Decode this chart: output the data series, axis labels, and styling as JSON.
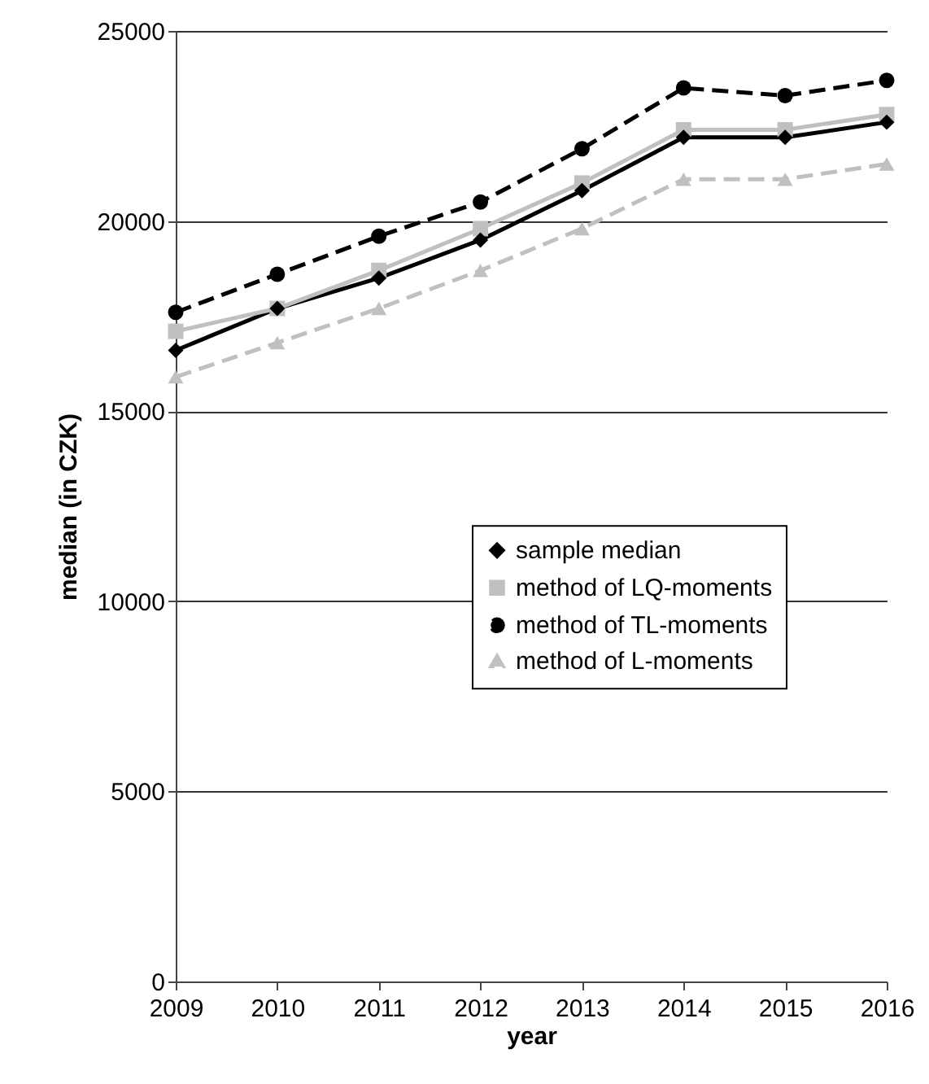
{
  "chart_data": {
    "type": "line",
    "xlabel": "year",
    "ylabel": "median (in CZK)",
    "categories": [
      "2009",
      "2010",
      "2011",
      "2012",
      "2013",
      "2014",
      "2015",
      "2016"
    ],
    "ylim": [
      0,
      25000
    ],
    "yticks": [
      0,
      5000,
      10000,
      15000,
      20000,
      25000
    ],
    "grid": "y",
    "legend": "right",
    "series": [
      {
        "name": "sample median",
        "color": "#000000",
        "marker": "diamond",
        "line_style": "solid",
        "values": [
          16600,
          17700,
          18500,
          19500,
          20800,
          22200,
          22200,
          22600
        ]
      },
      {
        "name": "method of LQ-moments",
        "color": "#c0c0c0",
        "marker": "square",
        "line_style": "solid",
        "values": [
          17100,
          17700,
          18700,
          19800,
          21000,
          22400,
          22400,
          22800
        ]
      },
      {
        "name": "method of TL-moments",
        "color": "#000000",
        "marker": "circle",
        "line_style": "dashed",
        "values": [
          17600,
          18600,
          19600,
          20500,
          21900,
          23500,
          23300,
          23700
        ]
      },
      {
        "name": "method of L-moments",
        "color": "#c0c0c0",
        "marker": "triangle",
        "line_style": "dashed",
        "values": [
          15900,
          16800,
          17700,
          18700,
          19800,
          21100,
          21100,
          21500
        ]
      }
    ]
  }
}
